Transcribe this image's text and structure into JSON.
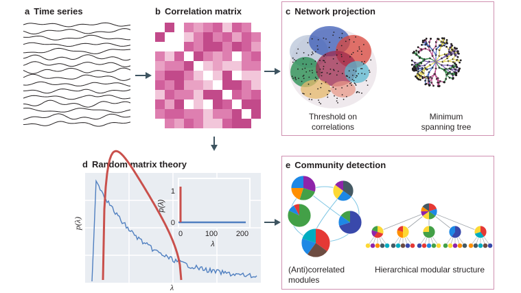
{
  "panels": {
    "a": {
      "letter": "a",
      "title": "Time series"
    },
    "b": {
      "letter": "b",
      "title": "Correlation matrix"
    },
    "c": {
      "letter": "c",
      "title": "Network projection",
      "captions": {
        "threshold": [
          "Threshold on",
          "correlations"
        ],
        "mst": [
          "Minimum",
          "spanning tree"
        ]
      }
    },
    "d": {
      "letter": "d",
      "title": "Random matrix theory",
      "ylabel": "p(λ)",
      "xlabel": "λ",
      "inset": {
        "ylabel": "p(λ)",
        "xlabel": "λ",
        "xticks": [
          "0",
          "100",
          "200"
        ],
        "yticks": [
          "0",
          "1"
        ]
      }
    },
    "e": {
      "letter": "e",
      "title": "Community detection",
      "captions": {
        "anti": [
          "(Anti)correlated",
          "modules"
        ],
        "hier": [
          "Hierarchical modular structure"
        ]
      }
    }
  },
  "colors": {
    "frame": "#cf8fb0",
    "empirical": "#4f7fc0",
    "theory": "#c9504c",
    "arrow": "#3d5460",
    "matrix_palette": [
      "#f2c6da",
      "#e9a2c4",
      "#de7fb0",
      "#d1609c",
      "#c24a8a",
      "#ffffff"
    ]
  }
}
